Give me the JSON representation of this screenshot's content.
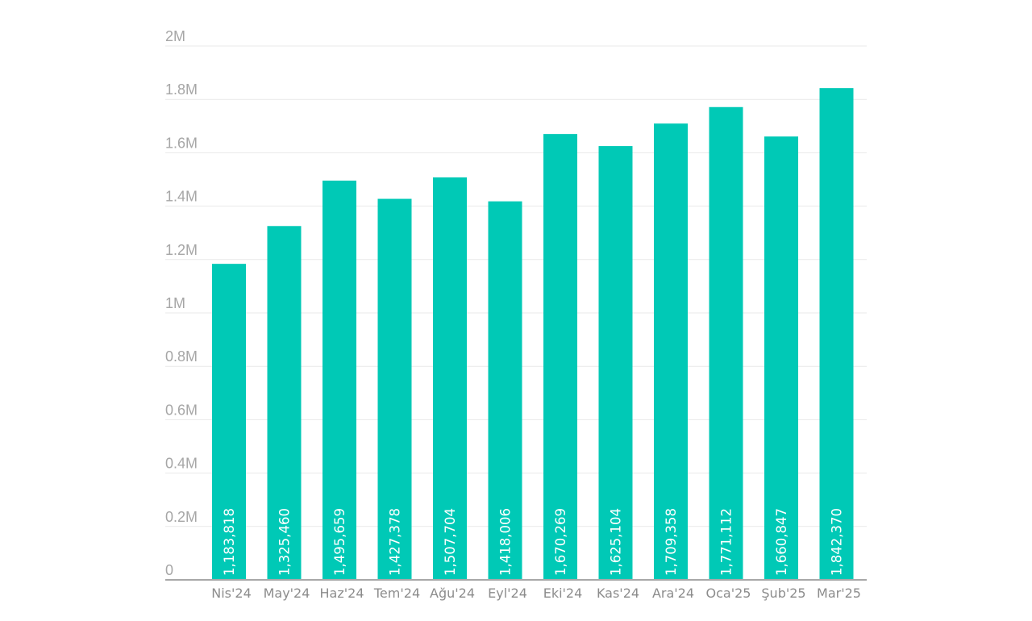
{
  "chart_data": {
    "type": "bar",
    "title": "",
    "xlabel": "",
    "ylabel": "",
    "categories": [
      "Nis'24",
      "May'24",
      "Haz'24",
      "Tem'24",
      "Ağu'24",
      "Eyl'24",
      "Eki'24",
      "Kas'24",
      "Ara'24",
      "Oca'25",
      "Şub'25",
      "Mar'25"
    ],
    "values": [
      1183818,
      1325460,
      1495659,
      1427378,
      1507704,
      1418006,
      1670269,
      1625104,
      1709358,
      1771112,
      1660847,
      1842370
    ],
    "value_labels": [
      "1,183,818",
      "1,325,460",
      "1,495,659",
      "1,427,378",
      "1,507,704",
      "1,418,006",
      "1,670,269",
      "1,625,104",
      "1,709,358",
      "1,771,112",
      "1,660,847",
      "1,842,370"
    ],
    "ylim": [
      0,
      2000000
    ],
    "yticks": [
      0,
      200000,
      400000,
      600000,
      800000,
      1000000,
      1200000,
      1400000,
      1600000,
      1800000,
      2000000
    ],
    "ytick_labels": [
      "0",
      "0.2M",
      "0.4M",
      "0.6M",
      "0.8M",
      "1M",
      "1.2M",
      "1.4M",
      "1.6M",
      "1.8M",
      "2M"
    ],
    "grid": true,
    "legend": "none",
    "colors": {
      "bar": "#00c9b6",
      "grid": "#e9e9e9",
      "baseline": "#a8a8a8",
      "tick_text": "#a6a6a6",
      "category_text": "#8c8c8c",
      "value_text": "#ffffff"
    }
  }
}
